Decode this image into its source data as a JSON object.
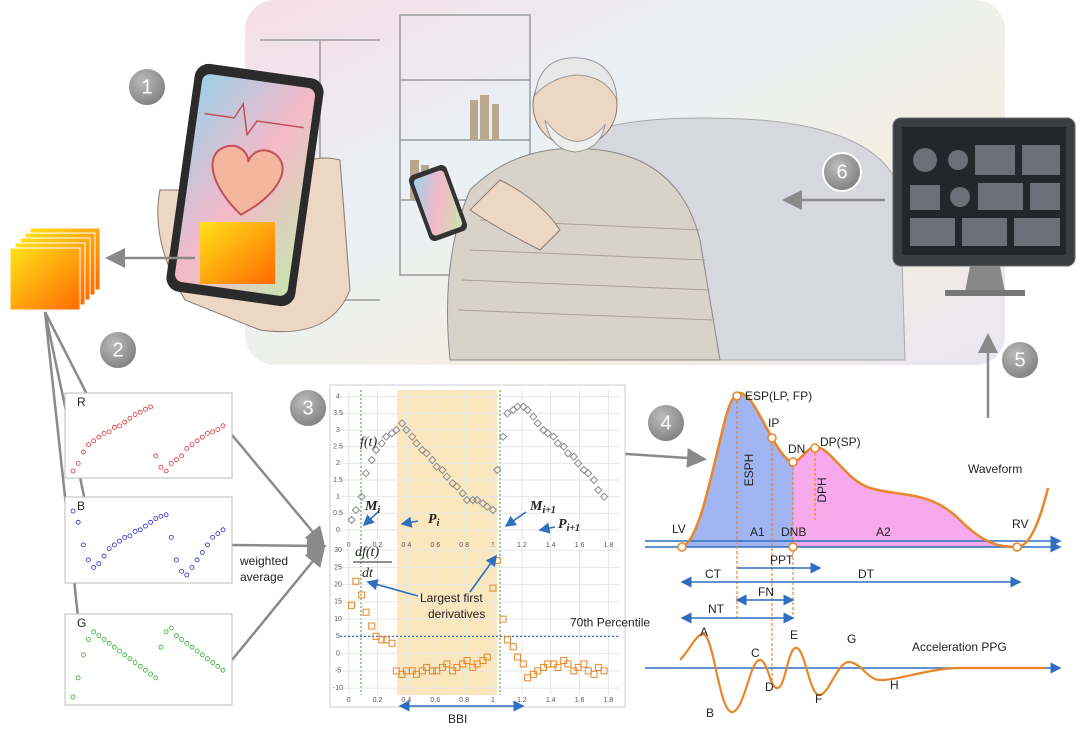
{
  "steps": [
    "1",
    "2",
    "3",
    "4",
    "5",
    "6"
  ],
  "channels": [
    {
      "name": "R",
      "color": "#e03030",
      "values": [
        0.1,
        0.2,
        0.35,
        0.45,
        0.5,
        0.55,
        0.6,
        0.62,
        0.68,
        0.7,
        0.75,
        0.8,
        0.85,
        0.88,
        0.92,
        0.95,
        0.3,
        0.15,
        0.1,
        0.2,
        0.25,
        0.3,
        0.4,
        0.45,
        0.5,
        0.55,
        0.6,
        0.62,
        0.65,
        0.7
      ]
    },
    {
      "name": "B",
      "color": "#2a2ad0",
      "values": [
        0.95,
        0.8,
        0.5,
        0.3,
        0.2,
        0.25,
        0.35,
        0.45,
        0.5,
        0.55,
        0.6,
        0.62,
        0.68,
        0.7,
        0.75,
        0.8,
        0.85,
        0.88,
        0.9,
        0.6,
        0.3,
        0.15,
        0.1,
        0.2,
        0.3,
        0.4,
        0.5,
        0.6,
        0.65,
        0.7
      ]
    },
    {
      "name": "G",
      "color": "#30b030",
      "values": [
        0.05,
        0.3,
        0.6,
        0.8,
        0.9,
        0.85,
        0.8,
        0.75,
        0.7,
        0.65,
        0.6,
        0.55,
        0.5,
        0.45,
        0.4,
        0.35,
        0.3,
        0.7,
        0.9,
        0.95,
        0.85,
        0.8,
        0.75,
        0.7,
        0.65,
        0.6,
        0.55,
        0.5,
        0.45,
        0.4
      ]
    }
  ],
  "weighted_average": [
    "weighted",
    "average"
  ],
  "chart_data": [
    {
      "type": "scatter",
      "marker": "diamond",
      "color": "#8a8a8a",
      "ylabel": "f(t)",
      "annotations": [
        {
          "base": "M",
          "sub": "i"
        },
        {
          "base": "P",
          "sub": "i"
        },
        {
          "base": "M",
          "sub": "i+1"
        },
        {
          "base": "P",
          "sub": "i+1"
        }
      ],
      "x": [
        0.02,
        0.05,
        0.09,
        0.12,
        0.16,
        0.19,
        0.23,
        0.26,
        0.3,
        0.33,
        0.37,
        0.4,
        0.44,
        0.47,
        0.51,
        0.54,
        0.58,
        0.61,
        0.65,
        0.68,
        0.72,
        0.75,
        0.79,
        0.82,
        0.86,
        0.89,
        0.93,
        0.96,
        1.0,
        1.03,
        1.07,
        1.1,
        1.14,
        1.17,
        1.21,
        1.24,
        1.28,
        1.31,
        1.35,
        1.38,
        1.42,
        1.45,
        1.49,
        1.52,
        1.56,
        1.59,
        1.63,
        1.66,
        1.7,
        1.73,
        1.77
      ],
      "values": [
        0.3,
        0.6,
        1.0,
        1.7,
        2.1,
        2.4,
        2.6,
        2.8,
        2.9,
        3.0,
        3.2,
        3.0,
        2.8,
        2.6,
        2.4,
        2.3,
        2.1,
        1.9,
        1.8,
        1.6,
        1.4,
        1.3,
        1.1,
        0.9,
        0.9,
        0.9,
        0.8,
        0.7,
        0.6,
        1.8,
        2.8,
        3.5,
        3.6,
        3.7,
        3.7,
        3.6,
        3.4,
        3.2,
        3.0,
        2.9,
        2.8,
        2.6,
        2.5,
        2.3,
        2.2,
        2.0,
        1.8,
        1.7,
        1.5,
        1.2,
        1.0
      ],
      "xlim": [
        -0.06,
        1.88
      ],
      "ylim": [
        -0.3,
        4.2
      ],
      "xticks": [
        0,
        0.2,
        0.4,
        0.6,
        0.8,
        1,
        1.2,
        1.4,
        1.6,
        1.8
      ],
      "yticks": [
        0,
        0.5,
        1,
        1.5,
        2,
        2.5,
        3,
        3.5,
        4
      ],
      "grid": true
    },
    {
      "type": "scatter",
      "marker": "square",
      "color": "#e8862a",
      "ylabel": {
        "numerator": "df(t)",
        "denominator": "dt"
      },
      "note": [
        "Largest first",
        "derivatives"
      ],
      "threshold": {
        "value": 5,
        "label": "70th Percentile"
      },
      "span_label": "BBI",
      "x": [
        0.02,
        0.05,
        0.09,
        0.12,
        0.16,
        0.19,
        0.23,
        0.26,
        0.3,
        0.33,
        0.37,
        0.4,
        0.44,
        0.47,
        0.51,
        0.54,
        0.58,
        0.61,
        0.65,
        0.68,
        0.72,
        0.75,
        0.79,
        0.82,
        0.86,
        0.89,
        0.93,
        0.96,
        1.0,
        1.03,
        1.07,
        1.1,
        1.14,
        1.17,
        1.21,
        1.24,
        1.28,
        1.31,
        1.35,
        1.38,
        1.42,
        1.45,
        1.49,
        1.52,
        1.56,
        1.59,
        1.63,
        1.66,
        1.7,
        1.73,
        1.77
      ],
      "values": [
        14,
        21,
        17,
        12,
        8,
        5,
        4,
        4,
        3,
        -5,
        -6,
        -5,
        -5,
        -6,
        -5,
        -4,
        -5,
        -5,
        -4,
        -3,
        -5,
        -4,
        -3,
        -2,
        -4,
        -3,
        -2,
        -1,
        19,
        27,
        10,
        4,
        2,
        -1,
        -3,
        -7,
        -6,
        -5,
        -4,
        -3,
        -3,
        -4,
        -2,
        -3,
        -5,
        -4,
        -3,
        -5,
        -6,
        -4,
        -5
      ],
      "xlim": [
        -0.06,
        1.88
      ],
      "ylim": [
        -12,
        31.5
      ],
      "xticks": [
        0,
        0.2,
        0.4,
        0.6,
        0.8,
        1,
        1.2,
        1.4,
        1.6,
        1.8
      ],
      "yticks": [
        -10,
        -5,
        0,
        5,
        10,
        15,
        20,
        25,
        30
      ],
      "grid": true
    }
  ],
  "waveform": {
    "title": "Waveform",
    "points": [
      "ESP(LP, FP)",
      "IP",
      "DN",
      "DP(SP)",
      "LV",
      "DNB",
      "RV"
    ],
    "heights": [
      "ESPH",
      "DPH"
    ],
    "areas": [
      "A1",
      "A2"
    ],
    "intervals": [
      "PPT",
      "CT",
      "DT",
      "FN",
      "NT"
    ]
  },
  "apg": {
    "title": "Acceleration PPG",
    "waves": [
      "A",
      "B",
      "C",
      "D",
      "E",
      "F",
      "G",
      "H"
    ]
  }
}
